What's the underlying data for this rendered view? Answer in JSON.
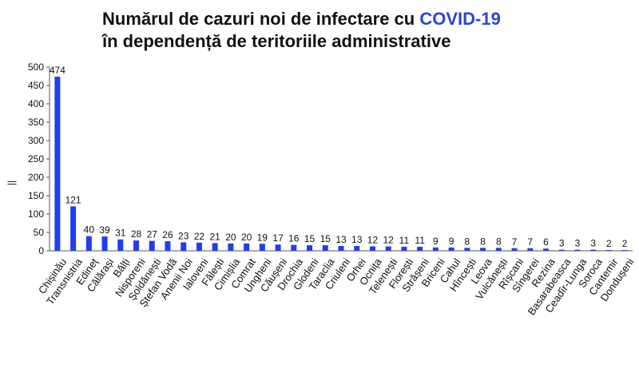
{
  "title": {
    "part1": "Numărul de cazuri noi de infectare cu ",
    "accent": "COVID-19",
    "line2": "în dependență de teritoriile administrative"
  },
  "colors": {
    "bar": "#1f3ef0",
    "accent": "#2a47d6",
    "axis": "#555555",
    "text": "#111111"
  },
  "chart_data": {
    "type": "bar",
    "title": "Numărul de cazuri noi de infectare cu COVID-19 în dependență de teritoriile administrative",
    "xlabel": "",
    "ylabel": "||",
    "ylim": [
      0,
      500
    ],
    "yticks": [
      0,
      50,
      100,
      150,
      200,
      250,
      300,
      350,
      400,
      450,
      500
    ],
    "grid": false,
    "categories": [
      "Chișinău",
      "Transnistria",
      "Edineț",
      "Călărași",
      "Bălți",
      "Nisporeni",
      "Șoldănești",
      "Ștefan Vodă",
      "Anenii Noi",
      "Ialoveni",
      "Fălești",
      "Cimișlia",
      "Comrat",
      "Ungheni",
      "Căușeni",
      "Drochia",
      "Glodeni",
      "Taraclia",
      "Criuleni",
      "Orhei",
      "Ocnița",
      "Telenești",
      "Florești",
      "Strășeni",
      "Briceni",
      "Cahul",
      "Hîncești",
      "Leova",
      "Vulcănești",
      "Rîșcani",
      "Sîngerei",
      "Rezina",
      "Basarabeasca",
      "Ceadîr-Lunga",
      "Soroca",
      "Cantemir",
      "Dondușeni"
    ],
    "values": [
      474,
      121,
      40,
      39,
      31,
      28,
      27,
      26,
      23,
      22,
      21,
      20,
      20,
      19,
      17,
      16,
      15,
      15,
      13,
      13,
      12,
      12,
      11,
      11,
      9,
      9,
      8,
      8,
      8,
      7,
      7,
      6,
      3,
      3,
      3,
      2,
      2
    ],
    "data_labels": [
      "474",
      "121",
      "40",
      "39",
      "31",
      "28",
      "27",
      "26",
      "23",
      "22",
      "21",
      "20",
      "20",
      "19",
      "17",
      "16",
      "15",
      "15",
      "13",
      "13",
      "12",
      "12",
      "11",
      "11",
      "9",
      "9",
      "8",
      "8",
      "8",
      "7",
      "7",
      "6",
      "3",
      "3",
      "3",
      "2",
      "2"
    ]
  }
}
